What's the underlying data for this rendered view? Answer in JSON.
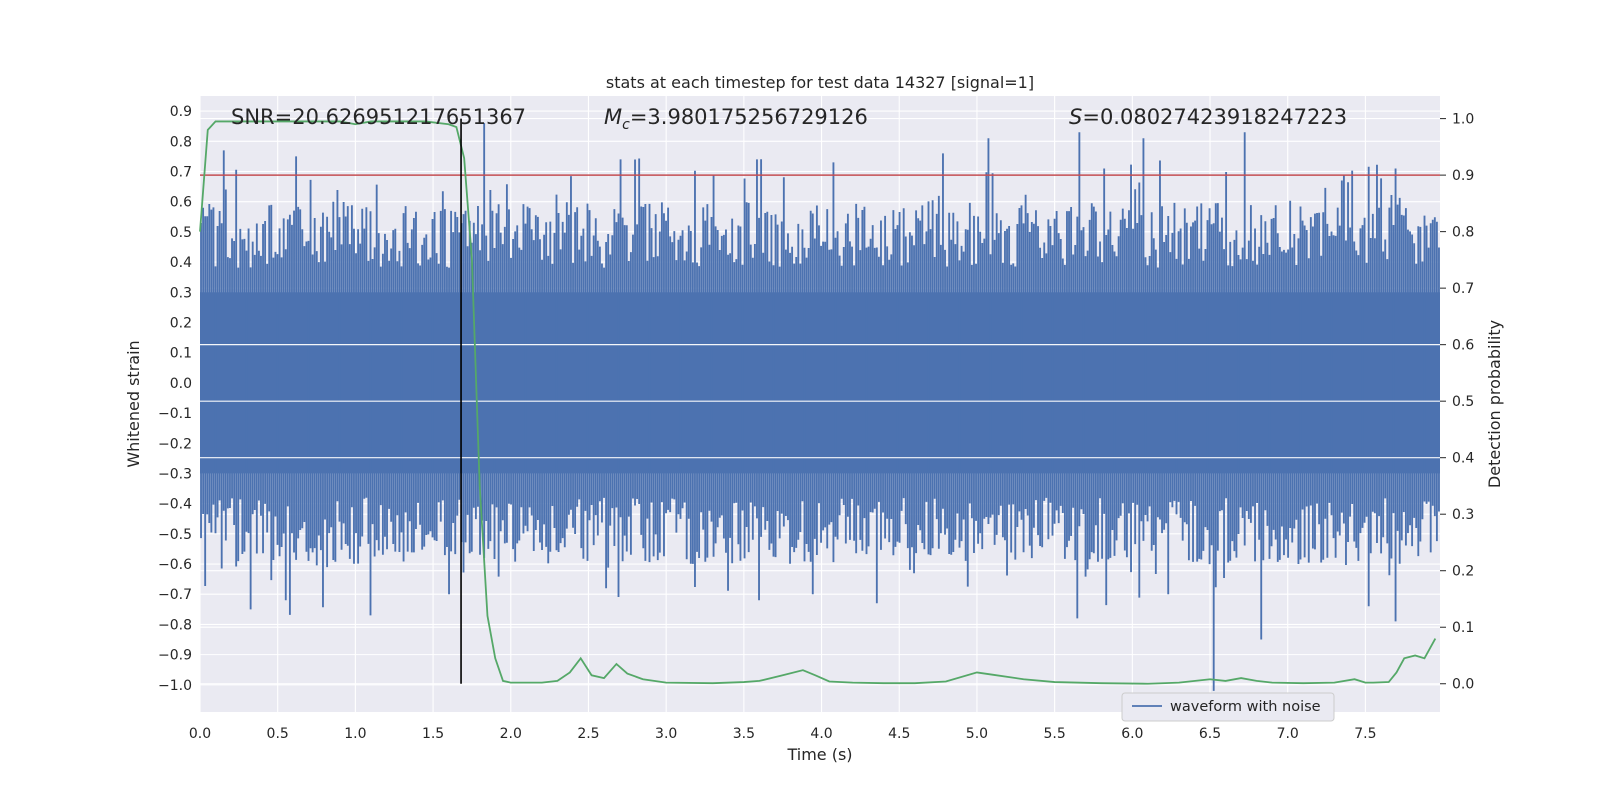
{
  "chart_data": {
    "type": "line",
    "title": "stats at each timestep for test data 14327 [signal=1]",
    "xlabel": "Time (s)",
    "ylabel_left": "Whitened strain",
    "ylabel_right": "Detection probability",
    "xlim": [
      0.0,
      7.98
    ],
    "ylim_left": [
      -1.09,
      0.95
    ],
    "ylim_right": [
      -0.05,
      1.04
    ],
    "xticks": [
      0.0,
      0.5,
      1.0,
      1.5,
      2.0,
      2.5,
      3.0,
      3.5,
      4.0,
      4.5,
      5.0,
      5.5,
      6.0,
      6.5,
      7.0,
      7.5
    ],
    "xtick_labels": [
      "0.0",
      "0.5",
      "1.0",
      "1.5",
      "2.0",
      "2.5",
      "3.0",
      "3.5",
      "4.0",
      "4.5",
      "5.0",
      "5.5",
      "6.0",
      "6.5",
      "7.0",
      "7.5"
    ],
    "yticks_left": [
      0.9,
      0.8,
      0.7,
      0.6,
      0.5,
      0.4,
      0.3,
      0.2,
      0.1,
      0.0,
      -0.1,
      -0.2,
      -0.3,
      -0.4,
      -0.5,
      -0.6,
      -0.7,
      -0.8,
      -0.9,
      -1.0
    ],
    "ytick_labels_left": [
      "0.9",
      "0.8",
      "0.7",
      "0.6",
      "0.5",
      "0.4",
      "0.3",
      "0.2",
      "0.1",
      "0.0",
      "−0.1",
      "−0.2",
      "−0.3",
      "−0.4",
      "−0.5",
      "−0.6",
      "−0.7",
      "−0.8",
      "−0.9",
      "−1.0"
    ],
    "yticks_right": [
      1.0,
      0.9,
      0.8,
      0.7,
      0.6,
      0.5,
      0.4,
      0.3,
      0.2,
      0.1,
      0.0
    ],
    "ytick_labels_right": [
      "1.0",
      "0.9",
      "0.8",
      "0.7",
      "0.6",
      "0.5",
      "0.4",
      "0.3",
      "0.2",
      "0.1",
      "0.0"
    ],
    "grid": true,
    "legend": {
      "position": "lower right",
      "entries": [
        "waveform with noise"
      ]
    },
    "annotations": [
      {
        "prefix": "SNR",
        "text": "=20.626951217651367"
      },
      {
        "prefix": "M",
        "subscript": "c",
        "text": "=3.980175256729126"
      },
      {
        "prefix": "S",
        "text": "=0.08027423918247223"
      }
    ],
    "threshold": {
      "axis": "right",
      "value": 0.9
    },
    "marker_time": 1.68,
    "waveform": {
      "name": "waveform with noise",
      "typical_upper": 0.3,
      "typical_lower": -0.3,
      "samples_approx": 600,
      "peaks_up": [
        [
          0.15,
          0.77
        ],
        [
          0.62,
          0.75
        ],
        [
          1.83,
          0.86
        ],
        [
          2.7,
          0.74
        ],
        [
          3.58,
          0.74
        ],
        [
          4.07,
          0.73
        ],
        [
          4.78,
          0.76
        ],
        [
          5.07,
          0.81
        ],
        [
          5.66,
          0.83
        ],
        [
          5.82,
          0.71
        ],
        [
          6.07,
          0.81
        ],
        [
          6.72,
          0.83
        ],
        [
          7.35,
          0.67
        ],
        [
          7.7,
          0.71
        ]
      ],
      "peaks_down": [
        [
          0.32,
          -0.75
        ],
        [
          0.55,
          -0.72
        ],
        [
          1.1,
          -0.77
        ],
        [
          1.6,
          -0.7
        ],
        [
          2.62,
          -0.68
        ],
        [
          3.6,
          -0.72
        ],
        [
          3.95,
          -0.7
        ],
        [
          4.35,
          -0.73
        ],
        [
          5.65,
          -0.78
        ],
        [
          6.53,
          -1.02
        ],
        [
          6.83,
          -0.85
        ],
        [
          7.52,
          -0.74
        ],
        [
          7.7,
          -0.79
        ]
      ]
    },
    "detection_probability": {
      "t": [
        0.0,
        0.05,
        0.1,
        0.3,
        0.6,
        0.9,
        1.0,
        1.1,
        1.3,
        1.45,
        1.6,
        1.65,
        1.7,
        1.75,
        1.8,
        1.85,
        1.9,
        1.95,
        2.0,
        2.2,
        2.3,
        2.38,
        2.45,
        2.52,
        2.6,
        2.68,
        2.75,
        2.85,
        3.0,
        3.3,
        3.5,
        3.6,
        3.75,
        3.88,
        3.96,
        4.05,
        4.2,
        4.4,
        4.6,
        4.8,
        5.0,
        5.1,
        5.3,
        5.5,
        5.8,
        6.1,
        6.3,
        6.5,
        6.6,
        6.7,
        6.8,
        6.9,
        7.1,
        7.3,
        7.43,
        7.5,
        7.55,
        7.65,
        7.7,
        7.75,
        7.82,
        7.88,
        7.95
      ],
      "p": [
        0.8,
        0.98,
        0.995,
        0.995,
        0.995,
        0.995,
        0.99,
        0.995,
        0.995,
        0.995,
        0.99,
        0.985,
        0.93,
        0.75,
        0.35,
        0.12,
        0.045,
        0.005,
        0.002,
        0.002,
        0.005,
        0.02,
        0.045,
        0.015,
        0.01,
        0.035,
        0.018,
        0.008,
        0.002,
        0.001,
        0.003,
        0.005,
        0.015,
        0.024,
        0.015,
        0.004,
        0.002,
        0.001,
        0.001,
        0.004,
        0.02,
        0.016,
        0.008,
        0.003,
        0.001,
        0.0,
        0.002,
        0.008,
        0.005,
        0.01,
        0.005,
        0.002,
        0.001,
        0.002,
        0.008,
        0.002,
        0.002,
        0.003,
        0.02,
        0.045,
        0.05,
        0.045,
        0.08
      ]
    }
  },
  "colors": {
    "waveform": "#4c72b0",
    "probability": "#55a868",
    "threshold": "#c44e52",
    "marker": "#000000",
    "axes_bg": "#eaeaf2",
    "grid": "#ffffff"
  }
}
